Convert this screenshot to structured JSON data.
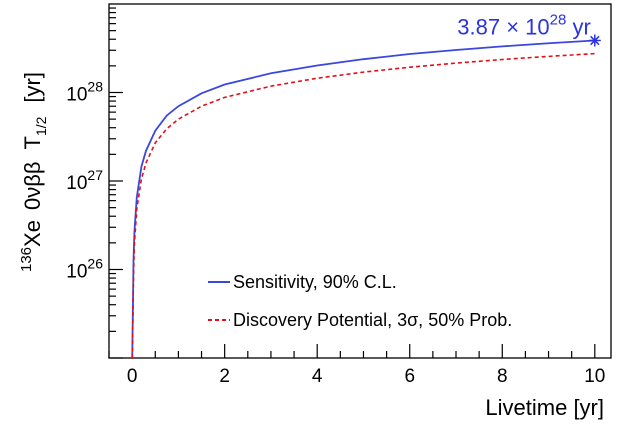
{
  "chart_data": {
    "type": "line",
    "xlabel": "Livetime [yr]",
    "ylabel": {
      "nucleus_mass": "136",
      "nucleus": "Xe",
      "decay": "0νββ",
      "symbol": "T",
      "subscript": "1/2",
      "unit": "[yr]"
    },
    "xlim": [
      -0.5,
      10.35
    ],
    "ylim": [
      1e+25,
      1e+29
    ],
    "yscale": "log",
    "x_ticks": [
      "0",
      "2",
      "4",
      "6",
      "8",
      "10"
    ],
    "x_tick_values": [
      0,
      2,
      4,
      6,
      8,
      10
    ],
    "y_ticks": [
      {
        "base": "10",
        "exp": "26",
        "value": 1e+26
      },
      {
        "base": "10",
        "exp": "27",
        "value": 1e+27
      },
      {
        "base": "10",
        "exp": "28",
        "value": 1e+28
      }
    ],
    "grid": false,
    "legend_position": "bottom-right",
    "series": [
      {
        "name": "Sensitivity, 90% C.L.",
        "color": "#3a47e0",
        "style": "solid",
        "x": [
          0.002,
          0.01,
          0.03,
          0.05,
          0.1,
          0.2,
          0.3,
          0.5,
          0.75,
          1,
          1.5,
          2,
          3,
          4,
          5,
          6,
          7,
          8,
          9,
          10
        ],
        "y": [
          1e+25,
          2e+25,
          1.3e+26,
          2.7e+26,
          6.5e+26,
          1.45e+27,
          2.2e+27,
          3.7e+27,
          5.5e+27,
          7e+27,
          9.8e+27,
          1.23e+28,
          1.65e+28,
          2.02e+28,
          2.38e+28,
          2.72e+28,
          3.02e+28,
          3.32e+28,
          3.6e+28,
          3.87e+28
        ]
      },
      {
        "name": "Discovery Potential, 3σ, 50% Prob.",
        "color": "#e0101a",
        "style": "dashed",
        "x": [
          0.002,
          0.01,
          0.03,
          0.05,
          0.1,
          0.2,
          0.3,
          0.5,
          0.75,
          1,
          1.5,
          2,
          3,
          4,
          5,
          6,
          7,
          8,
          9,
          10
        ],
        "y": [
          1e+25,
          1.6e+25,
          9.5e+25,
          2e+26,
          4.8e+26,
          1.05e+27,
          1.6e+27,
          2.7e+27,
          3.9e+27,
          5e+27,
          7e+27,
          8.8e+27,
          1.18e+28,
          1.45e+28,
          1.7e+28,
          1.93e+28,
          2.15e+28,
          2.36e+28,
          2.56e+28,
          2.75e+28
        ]
      }
    ],
    "annotation": {
      "x": 10,
      "y": 3.87e+28,
      "marker": "star",
      "color": "#2a33e0",
      "text_mantissa": "3.87 × 10",
      "text_exp": "28",
      "text_unit": " yr"
    }
  }
}
